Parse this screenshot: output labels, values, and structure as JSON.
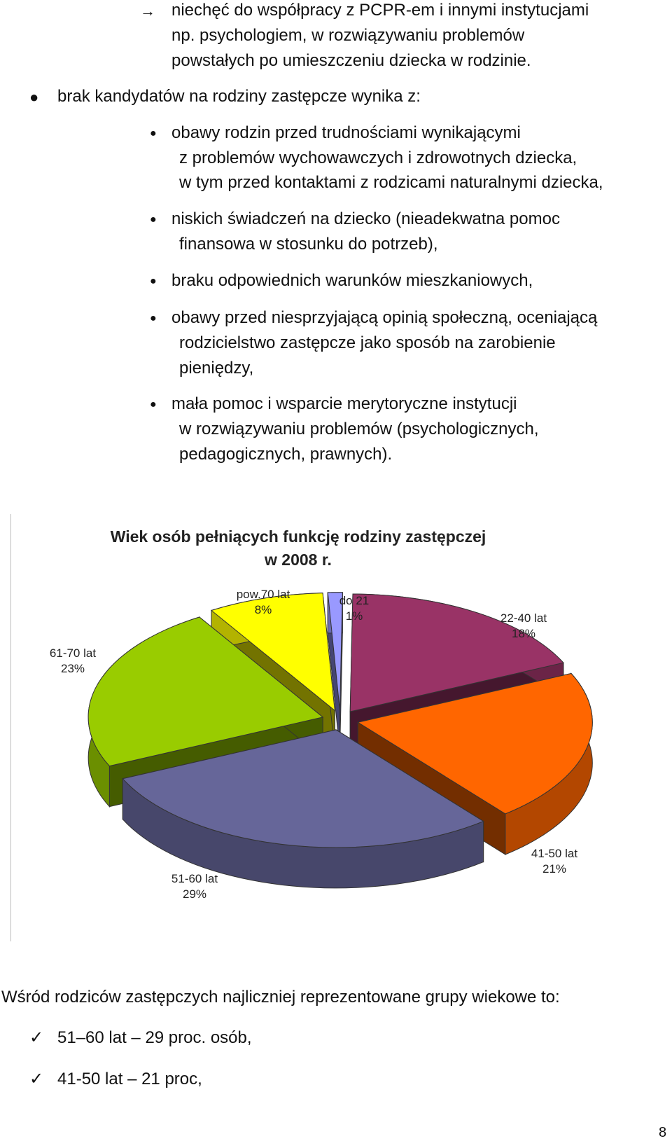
{
  "items": {
    "arrow_item": [
      "niechęć do współpracy z PCPR-em i innymi instytucjami",
      "np. psychologiem, w rozwiązywaniu problemów",
      "powstałych po umieszczeniu dziecka w rodzinie."
    ],
    "main_bullet": "brak kandydatów na rodziny zastępcze wynika z:",
    "sub1": [
      "obawy rodzin przed trudnościami wynikającymi",
      "z problemów wychowawczych i zdrowotnych dziecka,",
      "w tym przed kontaktami z rodzicami naturalnymi dziecka,"
    ],
    "sub2": [
      "niskich świadczeń na dziecko (nieadekwatna pomoc",
      "finansowa w stosunku do potrzeb),"
    ],
    "sub3": [
      "braku odpowiednich warunków mieszkaniowych,"
    ],
    "sub4": [
      "obawy przed niesprzyjającą opinią społeczną, oceniającą",
      "rodzicielstwo zastępcze jako sposób na zarobienie",
      "pieniędzy,"
    ],
    "sub5": [
      "mała pomoc i wsparcie merytoryczne instytucji",
      "w rozwiązywaniu problemów (psychologicznych,",
      "pedagogicznych, prawnych)."
    ]
  },
  "chart_data": {
    "type": "pie",
    "title": "Wiek osób pełniących funkcję rodziny zastępczej w 2008 r.",
    "title_lines": [
      "Wiek osób pełniących funkcję rodziny zastępczej",
      "w 2008 r."
    ],
    "categories": [
      "do 21",
      "22-40 lat",
      "41-50 lat",
      "51-60 lat",
      "61-70 lat",
      "pow.70 lat"
    ],
    "values": [
      1,
      18,
      21,
      29,
      23,
      8
    ],
    "value_labels": [
      "1%",
      "18%",
      "21%",
      "29%",
      "23%",
      "8%"
    ],
    "colors": [
      "#9999ff",
      "#993366",
      "#ff6600",
      "#666699",
      "#99cc00",
      "#ffff00"
    ],
    "style": "3d exploded pie",
    "legend": "none"
  },
  "summary": {
    "intro": "Wśród rodziców zastępczych najliczniej reprezentowane grupy wiekowe to:",
    "checks": [
      "51–60 lat – 29 proc. osób,",
      "41-50 lat – 21 proc,"
    ]
  },
  "page_number": "8"
}
